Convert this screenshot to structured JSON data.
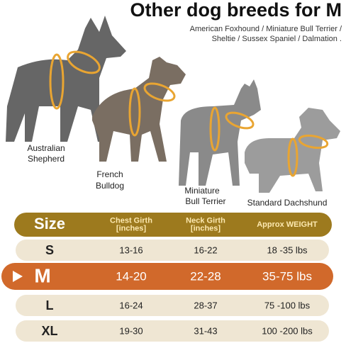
{
  "header": {
    "title": "Other dog breeds for M",
    "subtitle": [
      "American Foxhound / Miniature Bull Terrier /",
      "Sheltie / Sussex Spaniel / Dalmation ."
    ]
  },
  "dogs": [
    {
      "label": [
        "Australian",
        "Shepherd"
      ]
    },
    {
      "label": [
        "French",
        "Bulldog"
      ]
    },
    {
      "label": [
        "Miniature",
        "Bull Terrier"
      ]
    },
    {
      "label": [
        "Standard Dachshund"
      ]
    }
  ],
  "table": {
    "header": [
      [
        "Size"
      ],
      [
        "Chest Girth",
        "[inches]"
      ],
      [
        "Neck Girth",
        "[inches]"
      ],
      [
        "Approx WEIGHT"
      ]
    ],
    "rows": [
      [
        "S",
        "13-16",
        "16-22",
        "18 -35 lbs"
      ],
      [
        "M",
        "14-20",
        "22-28",
        "35-75 lbs"
      ],
      [
        "L",
        "16-24",
        "28-37",
        "75 -100 lbs"
      ],
      [
        "XL",
        "19-30",
        "31-43",
        "100 -200 lbs"
      ]
    ],
    "highlighted_row": 1
  }
}
